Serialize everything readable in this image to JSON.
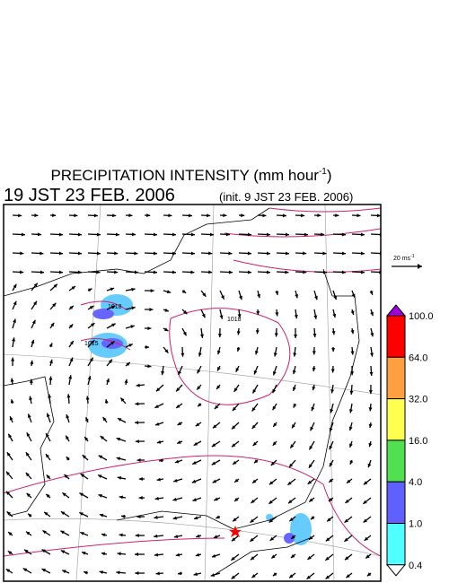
{
  "header": {
    "title": "PRECIPITATION INTENSITY (mm hour",
    "title_superscript": "-1",
    "title_close": ")",
    "valid_time": "19 JST 23 FEB. 2006",
    "init_time": "(init. 9 JST 23 FEB. 2006)"
  },
  "vector_scale": {
    "label": "20 ms",
    "superscript": "-1"
  },
  "isobar_labels": [
    "1018",
    "1015",
    "1018"
  ],
  "colorbar": {
    "labels": [
      "100.0",
      "64.0",
      "32.0",
      "16.0",
      "4.0",
      "1.0",
      "0.4"
    ],
    "colors": [
      "#a000e0",
      "#ff0000",
      "#ffa040",
      "#ffff50",
      "#50e050",
      "#6060ff",
      "#50ffff",
      "#ffffff"
    ]
  }
}
